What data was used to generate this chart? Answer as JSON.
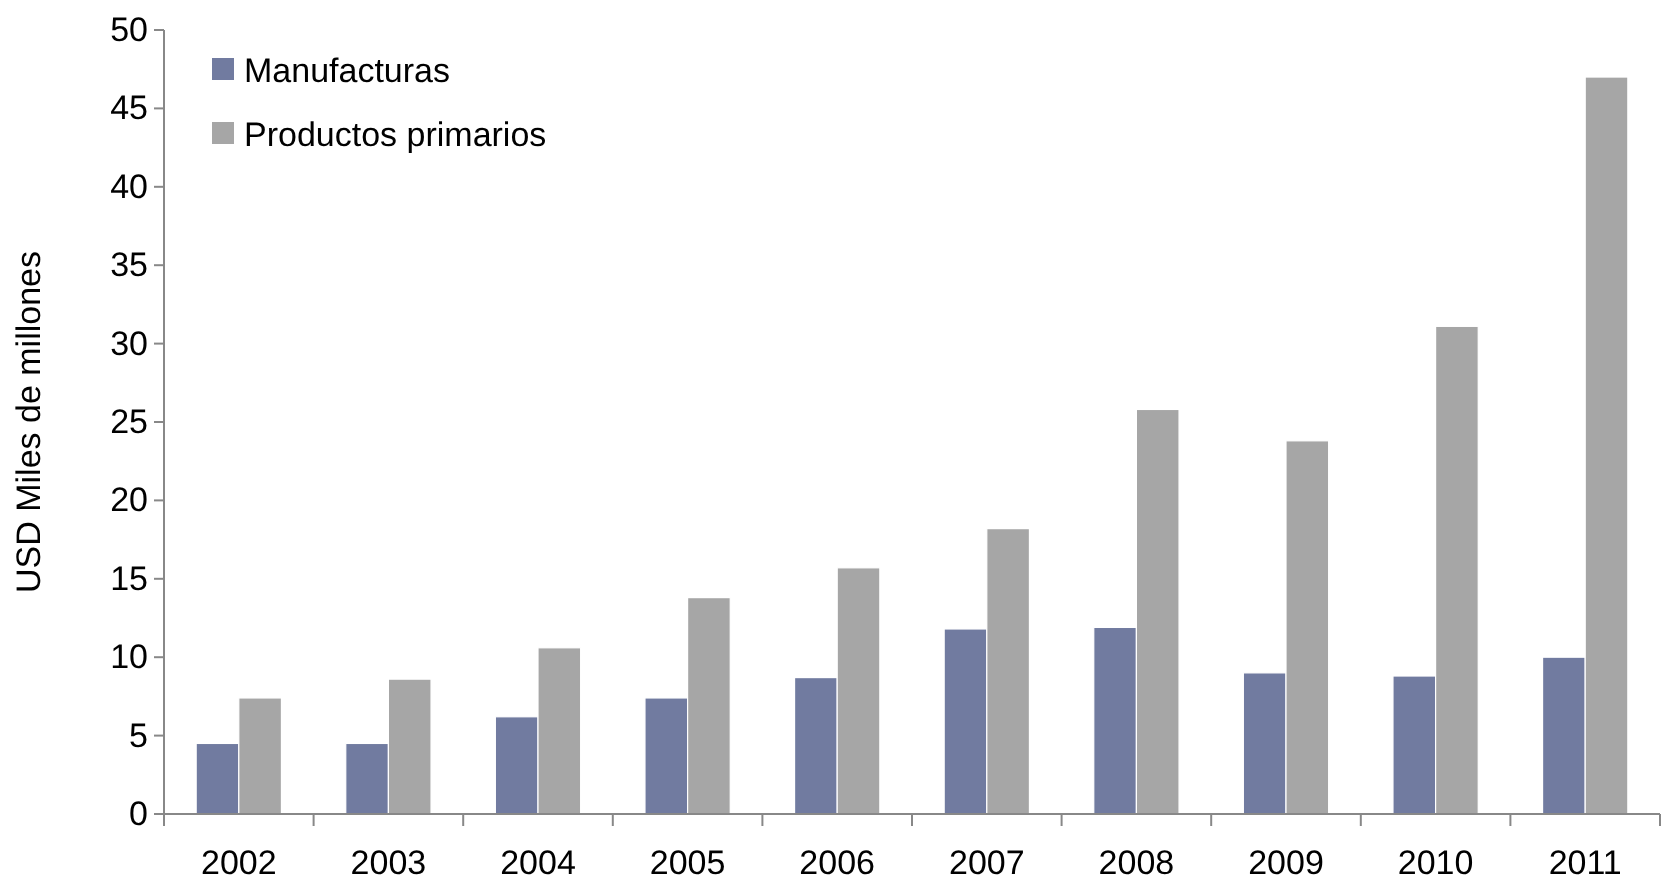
{
  "chart_data": {
    "type": "bar",
    "ylabel": "USD Miles de millones",
    "categories": [
      "2002",
      "2003",
      "2004",
      "2005",
      "2006",
      "2007",
      "2008",
      "2009",
      "2010",
      "2011"
    ],
    "series": [
      {
        "name": "Manufacturas",
        "color": "#717ba0",
        "values": [
          4.5,
          4.5,
          6.2,
          7.4,
          8.7,
          11.8,
          11.9,
          9.0,
          8.8,
          10.0
        ]
      },
      {
        "name": "Productos primarios",
        "color": "#a6a6a6",
        "values": [
          7.4,
          8.6,
          10.6,
          13.8,
          15.7,
          18.2,
          25.8,
          23.8,
          31.1,
          47.0
        ]
      }
    ],
    "ylim": [
      0,
      50
    ],
    "yticks": [
      0,
      5,
      10,
      15,
      20,
      25,
      30,
      35,
      40,
      45,
      50
    ],
    "grid": false,
    "legend": "top left"
  }
}
